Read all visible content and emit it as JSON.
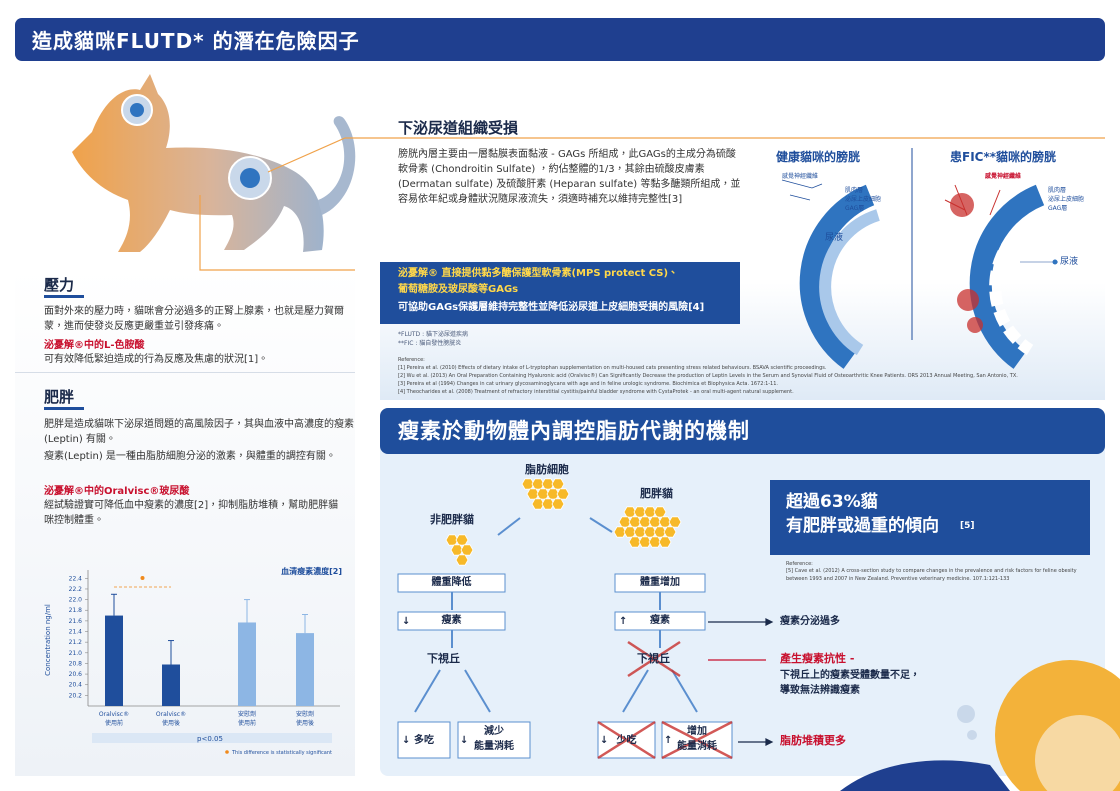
{
  "header": {
    "title": "造成貓咪FLUTD* 的潛在危險因子"
  },
  "pressure": {
    "title": "壓力",
    "body": "面對外來的壓力時，貓咪會分泌過多的正腎上腺素，也就是壓力賀爾蒙，進而使發炎反應更嚴重並引發疼痛。",
    "product_title": "泌憂解®中的L-色胺酸",
    "product_body": "可有效降低緊迫造成的行為反應及焦慮的狀況[1]。"
  },
  "obesity": {
    "title": "肥胖",
    "paragraphs": [
      "肥胖是造成貓咪下泌尿道問題的高風險因子，其與血液中高濃度的瘦素(Leptin) 有關。",
      "瘦素(Leptin) 是一種由脂肪細胞分泌的激素，與體重的調控有關。"
    ],
    "product_title": "泌憂解®中的Oralvisc®玻尿酸",
    "product_body": "經試驗證實可降低血中瘦素的濃度[2]，抑制脂肪堆積，幫助肥胖貓咪控制體重。"
  },
  "chart": {
    "type": "bar",
    "title": "血清瘦素濃度[2]",
    "y_label": "Concentration ng/ml",
    "categories": [
      [
        "Oralvisc®",
        "使用前"
      ],
      [
        "Oralvisc®",
        "使用後"
      ],
      [
        "安慰劑",
        "使用前"
      ],
      [
        "安慰劑",
        "使用後"
      ]
    ],
    "values": [
      21.7,
      20.78,
      21.57,
      21.37
    ],
    "errors": [
      0.4,
      0.45,
      0.43,
      0.35
    ],
    "colors": [
      "#1f4e9c",
      "#1f4e9c",
      "#8db6e4",
      "#8db6e4"
    ],
    "ylim": [
      20,
      22.5
    ],
    "yticks": [
      20.2,
      20.4,
      20.6,
      20.8,
      {
        "value": 21,
        "label": "21.0"
      },
      21.2,
      21.4,
      21.6,
      21.8,
      {
        "value": 22,
        "label": "22.0"
      },
      22.2,
      22.4
    ],
    "p_value": "p<0.05",
    "note": "This difference is statistically significant",
    "significance_color": "#f08a1c"
  },
  "uti": {
    "title": "下泌尿道組織受損",
    "paragraph": "膀胱內層主要由一層黏膜表面黏液 - GAGs 所組成，此GAGs的主成分為硫酸軟骨素 (Chondroitin Sulfate) ，約佔整體的1/3，其餘由硫酸皮膚素 (Dermatan sulfate) 及硫酸肝素 (Heparan sulfate) 等黏多醣類所組成，並容易依年紀或身體狀況隨尿液流失，須適時補充以維持完整性[3]",
    "highlight": [
      "泌憂解® 直接提供黏多醣保護型軟骨素(MPS protect CS)、",
      "葡萄糖胺及玻尿酸等GAGs",
      "可協助GAGs保護層維持完整性並降低泌尿道上皮細胞受損的風險[4]"
    ],
    "footnotes": [
      "*FLUTD : 貓下泌尿道疾病",
      "**FIC : 貓自發性膀胱炎"
    ],
    "references_title": "Reference:",
    "references": [
      "[1] Pereira et al. (2010) Effects of dietary intake of L-tryptophan supplementation on multi-housed cats presenting stress related behaviours. BSAVA scientific proceedings.",
      "[2] Wu et al. (2013) An Oral Preparation Containing Hyaluronic acid (Oralvisc®) Can Significantly Decrease the production of Leptin Levels in the Serum and Synovial Fluid of Osteoarthritic Knee Patients. ORS 2013 Annual Meeting, San Antonio, TX.",
      "[3] Pereira et al (1994) Changes in cat urinary glycosaminoglycans with age and in feline urologic syndrome. Biochimica et Biophysica Acta. 1672:1-11.",
      "[4] Theocharides et al. (2008) Treatment of refractory interstitial cystitis/painful bladder syndrome with CystaProtek - an oral multi-agent natural supplement."
    ]
  },
  "bladder": {
    "healthy_title": "健康貓咪的膀胱",
    "fic_title": "患FIC**貓咪的膀胱",
    "nerve_label": "感覺神經纖維",
    "layers": [
      "肌肉層",
      "泌尿上皮細胞",
      "GAG層"
    ],
    "urine": "尿液"
  },
  "leptin": {
    "title": "瘦素於動物體內調控脂肪代謝的機制",
    "fat_cell": "脂肪細胞",
    "non_obese": "非肥胖貓",
    "obese": "肥胖貓",
    "weight_down": "體重降低",
    "weight_up": "體重增加",
    "leptin": "瘦素",
    "hypothalamus": "下視丘",
    "eat_more": "多吃",
    "reduce_energy": "減少\n能量消耗",
    "eat_less": "少吃",
    "increase_energy": "增加\n能量消耗",
    "outcomes": [
      "瘦素分泌過多",
      "產生瘦素抗性 -",
      "下視丘上的瘦素受體數量不足，\n導致無法辨識瘦素",
      "脂肪堆積更多"
    ],
    "stat": [
      "超過63%貓",
      "有肥胖或過重的傾向"
    ],
    "stat_ref": "[5]",
    "reference_title": "Reference:",
    "reference": "[5] Cave et al. (2012) A cross-section study to compare changes in the prevalence and risk factors for feline obesity between 1993 and 2007 in New Zealand. Preventive veterinary medicine. 107.1:121-133"
  }
}
